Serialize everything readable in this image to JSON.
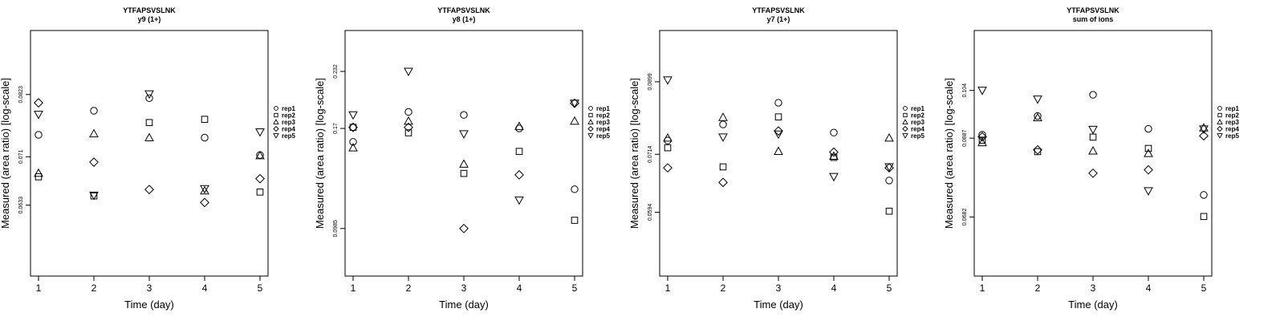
{
  "chart_data": [
    {
      "type": "scatter",
      "title": "YTFAPSVSLNK",
      "subtitle": "y9 (1+)",
      "xlabel": "Time (day)",
      "ylabel": "Measured (area ratio) [log-scale]",
      "x_ticks": [
        "1",
        "2",
        "3",
        "4",
        "5"
      ],
      "y_ticks": [
        {
          "value": 0.0823,
          "label": "0.0823"
        },
        {
          "value": 0.071,
          "label": "0.071"
        },
        {
          "value": 0.0633,
          "label": "0.0633"
        }
      ],
      "ylim": [
        0.0535,
        0.0958
      ],
      "log_scale": true,
      "legend_position": "right",
      "series": [
        {
          "name": "rep1",
          "marker": "circle",
          "values": [
            0.0748,
            0.0792,
            0.0816,
            0.0743,
            0.0713
          ]
        },
        {
          "name": "rep2",
          "marker": "square",
          "values": [
            0.0677,
            0.0647,
            0.077,
            0.0776,
            0.0653
          ]
        },
        {
          "name": "rep3",
          "marker": "triangle-up",
          "values": [
            0.0683,
            0.075,
            0.0743,
            0.0655,
            0.0712
          ]
        },
        {
          "name": "rep4",
          "marker": "diamond",
          "values": [
            0.0807,
            0.0701,
            0.0657,
            0.0637,
            0.0674
          ]
        },
        {
          "name": "rep5",
          "marker": "triangle-down",
          "values": [
            0.0785,
            0.0648,
            0.0824,
            0.0658,
            0.0753
          ]
        }
      ]
    },
    {
      "type": "scatter",
      "title": "YTFAPSVSLNK",
      "subtitle": "y8 (1+)",
      "xlabel": "Time (day)",
      "ylabel": "Measured (area ratio) [log-scale]",
      "x_ticks": [
        "1",
        "2",
        "3",
        "4",
        "5"
      ],
      "y_ticks": [
        {
          "value": 0.232,
          "label": "0.232"
        },
        {
          "value": 0.17,
          "label": "0.17"
        },
        {
          "value": 0.0985,
          "label": "0.0985"
        }
      ],
      "ylim": [
        0.076,
        0.29
      ],
      "log_scale": true,
      "legend_position": "right",
      "series": [
        {
          "name": "rep1",
          "marker": "circle",
          "values": [
            0.158,
            0.186,
            0.183,
            0.17,
            0.122
          ]
        },
        {
          "name": "rep2",
          "marker": "square",
          "values": [
            0.171,
            0.166,
            0.133,
            0.15,
            0.103
          ]
        },
        {
          "name": "rep3",
          "marker": "triangle-up",
          "values": [
            0.153,
            0.177,
            0.14,
            0.172,
            0.177
          ]
        },
        {
          "name": "rep4",
          "marker": "diamond",
          "values": [
            0.171,
            0.171,
            0.0985,
            0.132,
            0.195
          ]
        },
        {
          "name": "rep5",
          "marker": "triangle-down",
          "values": [
            0.183,
            0.232,
            0.165,
            0.115,
            0.195
          ]
        }
      ]
    },
    {
      "type": "scatter",
      "title": "YTFAPSVSLNK",
      "subtitle": "y7 (1+)",
      "xlabel": "Time (day)",
      "ylabel": "Measured (area ratio) [log-scale]",
      "x_ticks": [
        "1",
        "2",
        "3",
        "4",
        "5"
      ],
      "y_ticks": [
        {
          "value": 0.0899,
          "label": "0.0899"
        },
        {
          "value": 0.0714,
          "label": "0.0714"
        },
        {
          "value": 0.0594,
          "label": "0.0594"
        }
      ],
      "ylim": [
        0.0485,
        0.1058
      ],
      "log_scale": true,
      "legend_position": "right",
      "series": [
        {
          "name": "rep1",
          "marker": "circle",
          "values": [
            0.0746,
            0.0785,
            0.0841,
            0.0765,
            0.0657
          ]
        },
        {
          "name": "rep2",
          "marker": "square",
          "values": [
            0.0729,
            0.0686,
            0.0804,
            0.0707,
            0.0596
          ]
        },
        {
          "name": "rep3",
          "marker": "triangle-up",
          "values": [
            0.0752,
            0.0803,
            0.0721,
            0.071,
            0.0752
          ]
        },
        {
          "name": "rep4",
          "marker": "diamond",
          "values": [
            0.0684,
            0.0653,
            0.0769,
            0.0719,
            0.0684
          ]
        },
        {
          "name": "rep5",
          "marker": "triangle-down",
          "values": [
            0.0904,
            0.0754,
            0.0761,
            0.0665,
            0.0686
          ]
        }
      ]
    },
    {
      "type": "scatter",
      "title": "YTFAPSVSLNK",
      "subtitle": "sum of ions",
      "xlabel": "Time (day)",
      "ylabel": "Measured (area ratio) [log-scale]",
      "x_ticks": [
        "1",
        "2",
        "3",
        "4",
        "5"
      ],
      "y_ticks": [
        {
          "value": 0.104,
          "label": "0.104"
        },
        {
          "value": 0.0887,
          "label": "0.0887"
        },
        {
          "value": 0.0682,
          "label": "0.0682"
        }
      ],
      "ylim": [
        0.056,
        0.127
      ],
      "log_scale": true,
      "legend_position": "right",
      "series": [
        {
          "name": "rep1",
          "marker": "circle",
          "values": [
            0.0897,
            0.0955,
            0.1025,
            0.0915,
            0.0734
          ]
        },
        {
          "name": "rep2",
          "marker": "square",
          "values": [
            0.0881,
            0.0848,
            0.089,
            0.0857,
            0.0683
          ]
        },
        {
          "name": "rep3",
          "marker": "triangle-up",
          "values": [
            0.0874,
            0.095,
            0.085,
            0.0843,
            0.0918
          ]
        },
        {
          "name": "rep4",
          "marker": "diamond",
          "values": [
            0.0891,
            0.0853,
            0.0789,
            0.0798,
            0.0894
          ]
        },
        {
          "name": "rep5",
          "marker": "triangle-down",
          "values": [
            0.104,
            0.101,
            0.0913,
            0.0744,
            0.0914
          ]
        }
      ]
    }
  ]
}
